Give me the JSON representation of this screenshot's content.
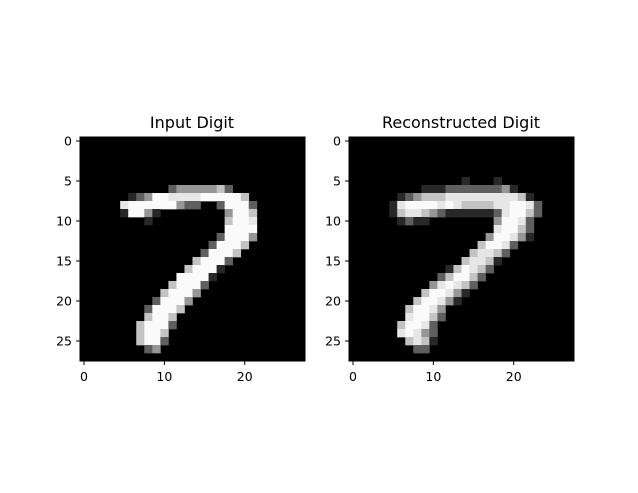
{
  "chart_data": [
    {
      "type": "heatmap",
      "title": "Input Digit",
      "colormap": "gray",
      "grid": false,
      "xlim": [
        -0.5,
        27.5
      ],
      "ylim": [
        27.5,
        -0.5
      ],
      "xticks": [
        0,
        10,
        20
      ],
      "yticks": [
        0,
        5,
        10,
        15,
        20,
        25
      ],
      "pixel_rows": [
        "............................",
        "............................",
        "............................",
        "............................",
        "............................",
        "............................",
        "...........bcccccdb.........",
        "......abcffeeeefffffd.......",
        ".....effffffcbb..bfffb......",
        ".....affca........cffd......",
        "........a.........dffe......",
        "..................ffff......",
        ".................bfffc......",
        "................bfffd.......",
        "...............bfffd........",
        "..............dfffb.........",
        ".............dfffa..........",
        "............ffffa...........",
        "...........dfffb............",
        "..........dfffc.............",
        ".........bfffc..............",
        "........bfffd...............",
        "........dffd................",
        ".......dfffb................",
        ".......dffd.................",
        ".......dffb.................",
        "........bc..................",
        "............................"
      ]
    },
    {
      "type": "heatmap",
      "title": "Reconstructed Digit",
      "colormap": "gray",
      "grid": false,
      "xlim": [
        -0.5,
        27.5
      ],
      "ylim": [
        27.5,
        -0.5
      ],
      "xticks": [
        0,
        10,
        20
      ],
      "yticks": [
        0,
        5,
        10,
        15,
        20,
        25
      ],
      "pixel_rows": [
        "............................",
        "............................",
        "............................",
        "............................",
        "............................",
        "..............a...a.........",
        ".........aaabbbbbbbca.......",
        "......abcdddeeeeeeeeeda.....",
        ".....aeffffefeddddeeffeb....",
        ".....adeedcbaaaaaabeffdb....",
        "......abaa........cffeb.....",
        "..................effdb.....",
        ".................cffeca.....",
        "................dffeb.......",
        "...............deedb........",
        "..............deeda.........",
        "............adfedb..........",
        "...........bdffdb...........",
        "..........cefedb............",
        ".........dffeca.............",
        "........dffeca..............",
        ".......dffec................",
        ".......effdb................",
        "......dffeb.................",
        "......efecb.................",
        ".......deda.................",
        "........bb..................",
        "............................"
      ]
    }
  ]
}
